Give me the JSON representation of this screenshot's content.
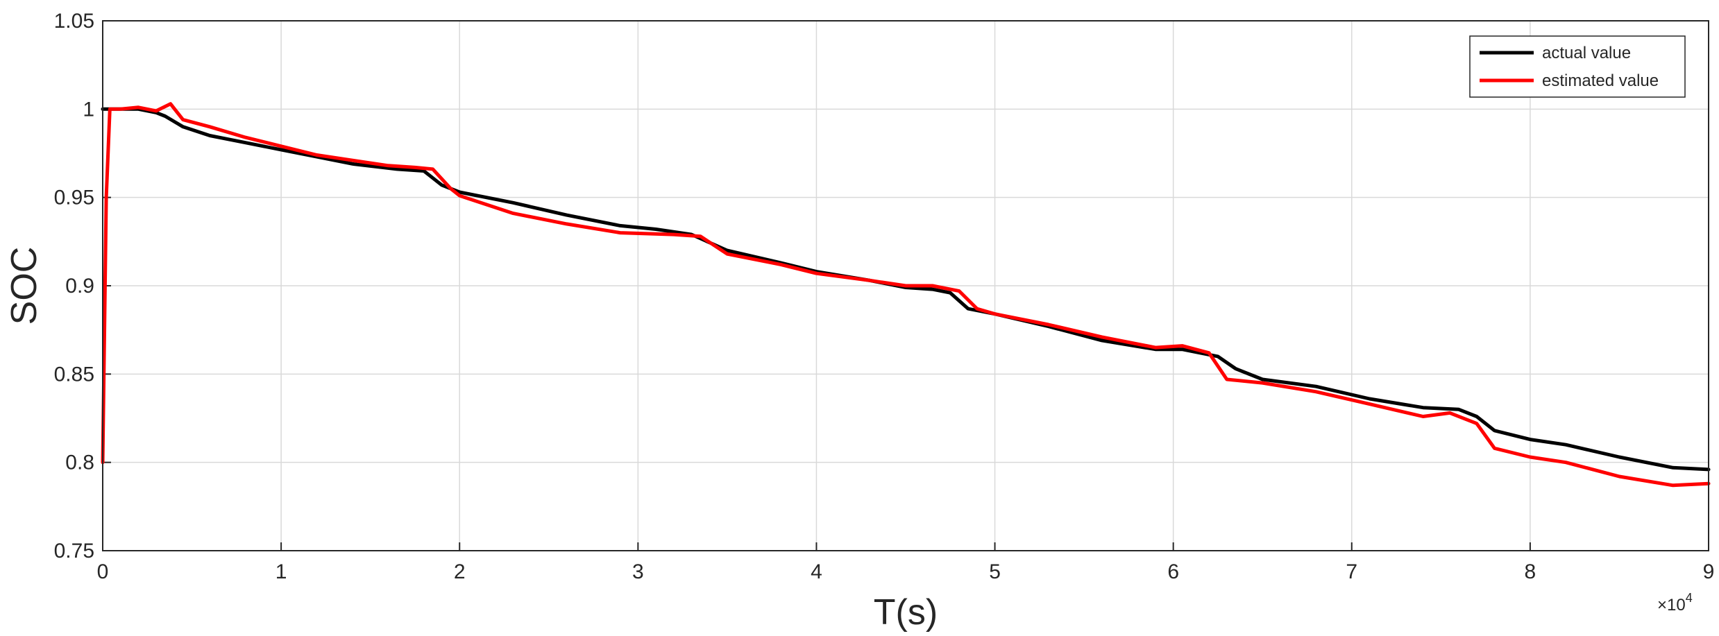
{
  "chart_data": {
    "type": "line",
    "title": "",
    "xlabel": "T(s)",
    "ylabel": "SOC",
    "x_exponent_label": "×10",
    "x_exponent_power": "4",
    "xlim": [
      0,
      9
    ],
    "ylim": [
      0.75,
      1.05
    ],
    "x_ticks": [
      "0",
      "1",
      "2",
      "3",
      "4",
      "5",
      "6",
      "7",
      "8",
      "9"
    ],
    "y_ticks": [
      "0.75",
      "0.8",
      "0.85",
      "0.9",
      "0.95",
      "1",
      "1.05"
    ],
    "grid": true,
    "legend_position": "top-right",
    "series": [
      {
        "name": "actual value",
        "color": "#000000",
        "x": [
          0,
          0.2,
          0.3,
          0.35,
          0.45,
          0.6,
          0.8,
          1.0,
          1.2,
          1.4,
          1.65,
          1.8,
          1.9,
          2.0,
          2.3,
          2.6,
          2.9,
          3.1,
          3.3,
          3.5,
          3.8,
          4.0,
          4.3,
          4.5,
          4.65,
          4.75,
          4.85,
          5.0,
          5.3,
          5.6,
          5.9,
          6.05,
          6.25,
          6.35,
          6.5,
          6.8,
          7.1,
          7.4,
          7.6,
          7.7,
          7.8,
          8.0,
          8.2,
          8.5,
          8.8,
          9.0
        ],
        "values": [
          1.0,
          1.0,
          0.998,
          0.996,
          0.99,
          0.985,
          0.981,
          0.977,
          0.973,
          0.969,
          0.966,
          0.965,
          0.957,
          0.953,
          0.947,
          0.94,
          0.934,
          0.932,
          0.929,
          0.92,
          0.913,
          0.908,
          0.903,
          0.899,
          0.898,
          0.896,
          0.887,
          0.884,
          0.877,
          0.869,
          0.864,
          0.864,
          0.86,
          0.853,
          0.847,
          0.843,
          0.836,
          0.831,
          0.83,
          0.826,
          0.818,
          0.813,
          0.81,
          0.803,
          0.797,
          0.796
        ]
      },
      {
        "name": "estimated value",
        "color": "#ff0000",
        "x": [
          0,
          0.02,
          0.04,
          0.05,
          0.1,
          0.2,
          0.3,
          0.38,
          0.45,
          0.6,
          0.8,
          1.0,
          1.2,
          1.4,
          1.6,
          1.75,
          1.85,
          1.95,
          2.0,
          2.3,
          2.6,
          2.9,
          3.2,
          3.35,
          3.5,
          3.8,
          4.0,
          4.3,
          4.5,
          4.65,
          4.8,
          4.9,
          5.0,
          5.3,
          5.6,
          5.9,
          6.05,
          6.2,
          6.3,
          6.5,
          6.8,
          7.1,
          7.4,
          7.55,
          7.7,
          7.8,
          8.0,
          8.2,
          8.5,
          8.8,
          9.0
        ],
        "values": [
          0.8,
          0.95,
          1.0,
          1.0,
          1.0,
          1.001,
          0.999,
          1.003,
          0.994,
          0.99,
          0.984,
          0.979,
          0.974,
          0.971,
          0.968,
          0.967,
          0.966,
          0.955,
          0.951,
          0.941,
          0.935,
          0.93,
          0.929,
          0.928,
          0.918,
          0.912,
          0.907,
          0.903,
          0.9,
          0.9,
          0.897,
          0.887,
          0.884,
          0.878,
          0.871,
          0.865,
          0.866,
          0.862,
          0.847,
          0.845,
          0.84,
          0.833,
          0.826,
          0.828,
          0.822,
          0.808,
          0.803,
          0.8,
          0.792,
          0.787,
          0.788
        ]
      }
    ]
  }
}
